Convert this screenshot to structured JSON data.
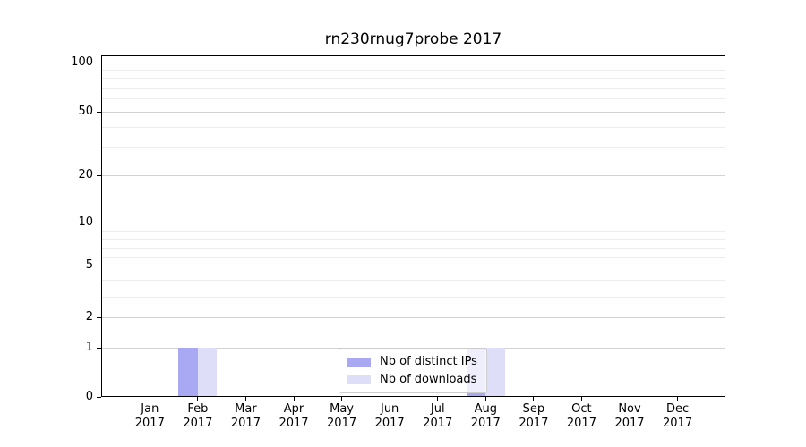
{
  "title": "rn230rnug7probe 2017",
  "legend": {
    "items": [
      {
        "label": "Nb of distinct IPs",
        "color": "#a9a9f3"
      },
      {
        "label": "Nb of downloads",
        "color": "#dedef8"
      }
    ]
  },
  "chart_data": {
    "type": "bar",
    "title": "rn230rnug7probe 2017",
    "categories": [
      "Jan",
      "Feb",
      "Mar",
      "Apr",
      "May",
      "Jun",
      "Jul",
      "Aug",
      "Sep",
      "Oct",
      "Nov",
      "Dec"
    ],
    "x_tick_labels": [
      [
        "Jan",
        "2017"
      ],
      [
        "Feb",
        "2017"
      ],
      [
        "Mar",
        "2017"
      ],
      [
        "Apr",
        "2017"
      ],
      [
        "May",
        "2017"
      ],
      [
        "Jun",
        "2017"
      ],
      [
        "Jul",
        "2017"
      ],
      [
        "Aug",
        "2017"
      ],
      [
        "Sep",
        "2017"
      ],
      [
        "Oct",
        "2017"
      ],
      [
        "Nov",
        "2017"
      ],
      [
        "Dec",
        "2017"
      ]
    ],
    "series": [
      {
        "name": "Nb of distinct IPs",
        "color": "#a9a9f3",
        "values": [
          0,
          1,
          0,
          0,
          0,
          0,
          0,
          1,
          0,
          0,
          0,
          0
        ]
      },
      {
        "name": "Nb of downloads",
        "color": "#dedef8",
        "values": [
          0,
          1,
          0,
          0,
          0,
          0,
          0,
          1,
          0,
          0,
          0,
          0
        ]
      }
    ],
    "xlabel": "",
    "ylabel": "",
    "yscale": "log-like with linear segment to 0",
    "y_major_ticks": [
      0,
      1,
      2,
      5,
      10,
      20,
      50,
      100
    ],
    "y_minor_gridlines": [
      3,
      4,
      6,
      7,
      8,
      9,
      30,
      40,
      60,
      70,
      80,
      90
    ],
    "ylim": [
      0,
      110
    ],
    "grid": "horizontal major+minor",
    "legend_position": "lower center"
  }
}
